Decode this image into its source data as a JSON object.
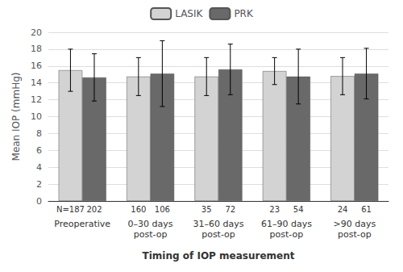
{
  "chart_data": {
    "type": "bar",
    "categories": [
      "Preoperative",
      "0–30 days\npost-op",
      "31–60 days\npost-op",
      "61–90 days\npost-op",
      ">90 days\npost-op"
    ],
    "series": [
      {
        "name": "LASIK",
        "color": "#d3d3d3",
        "values": [
          15.5,
          14.75,
          14.75,
          15.4,
          14.8
        ],
        "errors": [
          2.5,
          2.25,
          2.25,
          1.6,
          2.2
        ],
        "n_labels": [
          "N=187",
          "160",
          "35",
          "23",
          "24"
        ]
      },
      {
        "name": "PRK",
        "color": "#696969",
        "values": [
          14.65,
          15.1,
          15.6,
          14.75,
          15.1
        ],
        "errors": [
          2.8,
          3.9,
          3.0,
          3.25,
          3.0
        ],
        "n_labels": [
          "202",
          "106",
          "72",
          "54",
          "61"
        ]
      }
    ],
    "ylabel": "Mean IOP (mmHg)",
    "xlabel": "Timing of IOP measurement",
    "ylim": [
      0,
      20
    ],
    "yticks": [
      0,
      2,
      4,
      6,
      8,
      10,
      12,
      14,
      16,
      18,
      20
    ],
    "grid": true,
    "legend": "top"
  }
}
